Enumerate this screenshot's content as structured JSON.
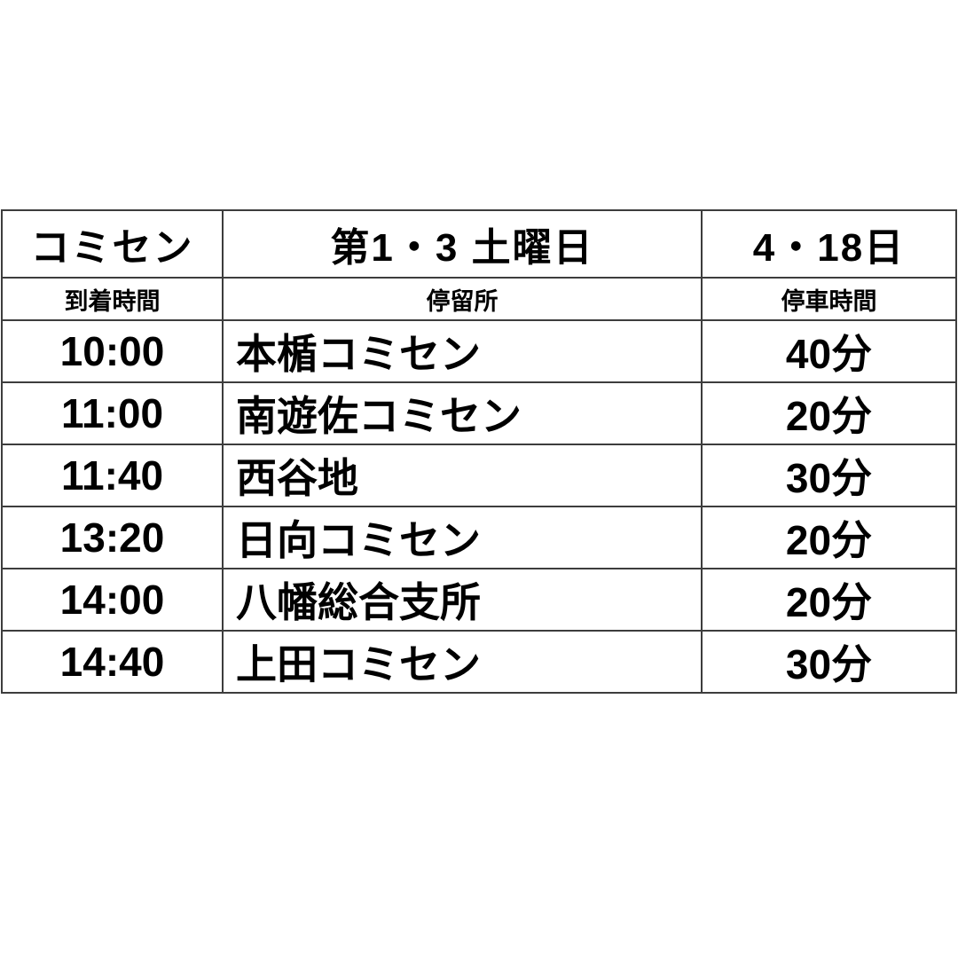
{
  "page": {
    "background_color": "#ffffff",
    "text_color": "#000000",
    "border_color": "#3d3d3d"
  },
  "table": {
    "header": {
      "col1": "コミセン",
      "col2": "第1・3 土曜日",
      "col3": "4・18日"
    },
    "subheader": {
      "col1": "到着時間",
      "col2": "停留所",
      "col3": "停車時間"
    },
    "rows": [
      {
        "time": "10:00",
        "stop": "本楯コミセン",
        "duration": "40分"
      },
      {
        "time": "11:00",
        "stop": "南遊佐コミセン",
        "duration": "20分"
      },
      {
        "time": "11:40",
        "stop": "西谷地",
        "duration": "30分"
      },
      {
        "time": "13:20",
        "stop": "日向コミセン",
        "duration": "20分"
      },
      {
        "time": "14:00",
        "stop": "八幡総合支所",
        "duration": "20分"
      },
      {
        "time": "14:40",
        "stop": "上田コミセン",
        "duration": "30分"
      }
    ]
  }
}
